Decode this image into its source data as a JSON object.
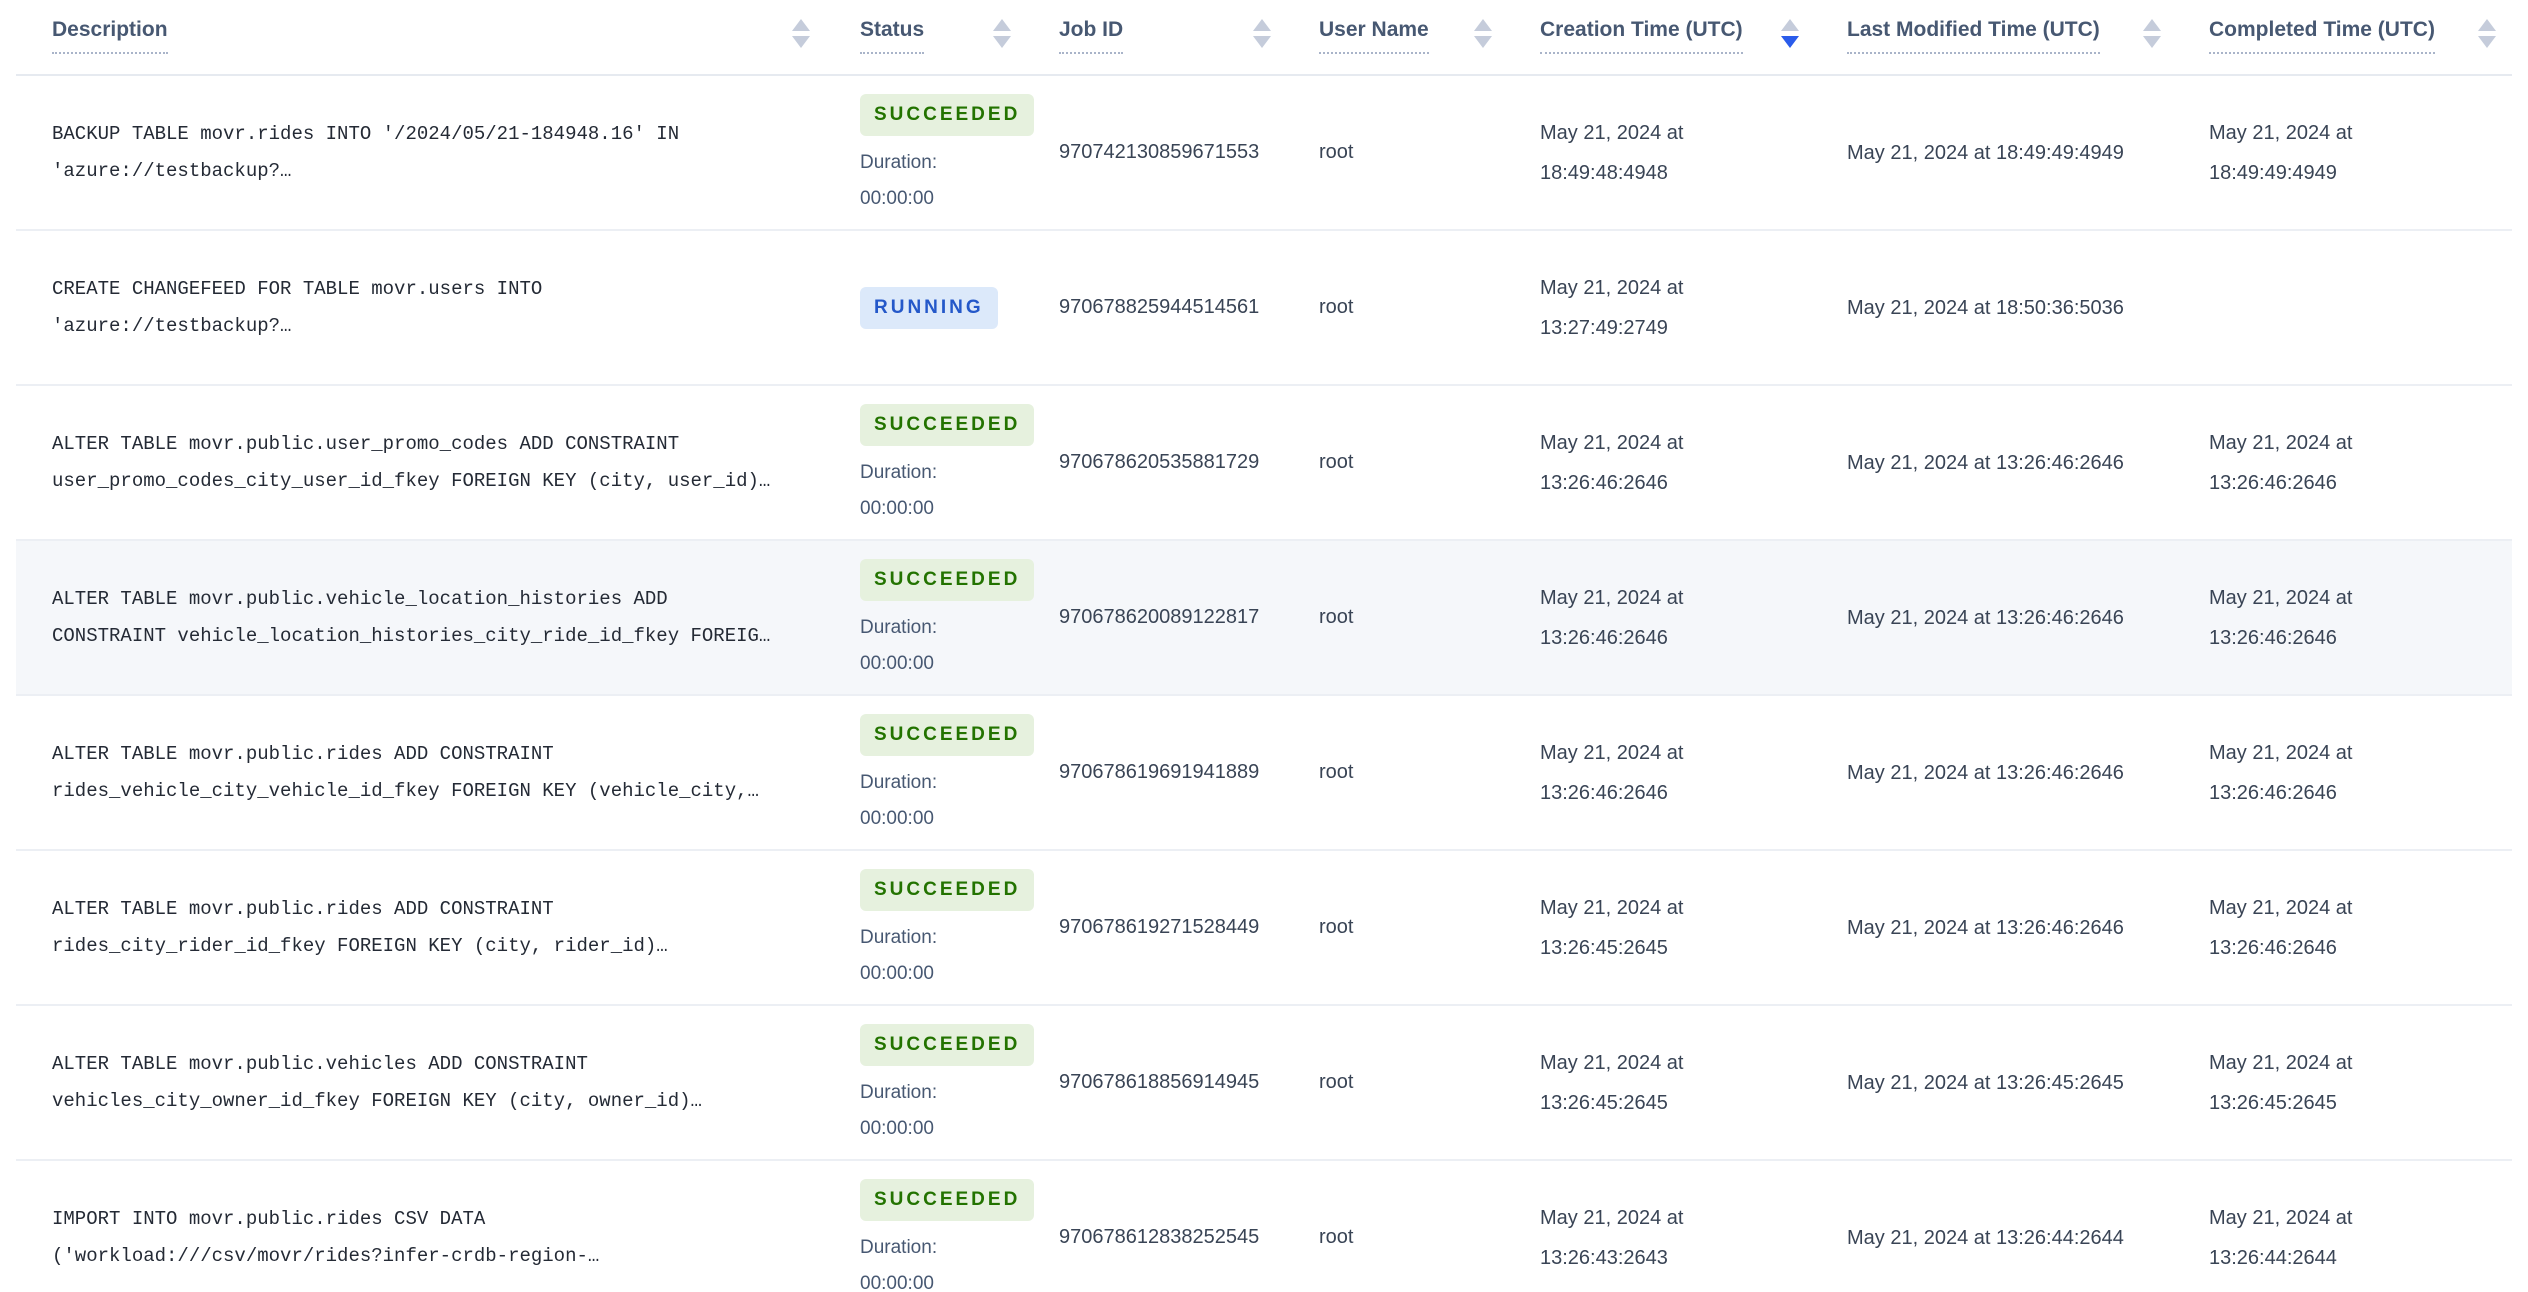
{
  "table": {
    "duration_label": "Duration:",
    "columns": [
      {
        "key": "description",
        "label": "Description",
        "sort": "none"
      },
      {
        "key": "status",
        "label": "Status",
        "sort": "none"
      },
      {
        "key": "job_id",
        "label": "Job ID",
        "sort": "none"
      },
      {
        "key": "user",
        "label": "User Name",
        "sort": "none"
      },
      {
        "key": "created",
        "label": "Creation Time (UTC)",
        "sort": "desc"
      },
      {
        "key": "modified",
        "label": "Last Modified Time (UTC)",
        "sort": "none"
      },
      {
        "key": "completed",
        "label": "Completed Time (UTC)",
        "sort": "none"
      }
    ],
    "status_colors": {
      "SUCCEEDED": {
        "bg": "#E6F1DE",
        "text": "#237300"
      },
      "RUNNING": {
        "bg": "#DCE9FA",
        "text": "#2458C9"
      }
    },
    "sort_active_color": "#2A5CEB",
    "rows": [
      {
        "description_lines": [
          "BACKUP TABLE movr.rides INTO '/2024/05/21-184948.16' IN",
          "'azure://testbackup?…"
        ],
        "status": "SUCCEEDED",
        "duration": "00:00:00",
        "job_id": "970742130859671553",
        "user": "root",
        "created": "May 21, 2024 at 18:49:48:4948",
        "modified": "May 21, 2024 at 18:49:49:4949",
        "completed": "May 21, 2024 at 18:49:49:4949",
        "highlighted": false
      },
      {
        "description_lines": [
          "CREATE CHANGEFEED FOR TABLE movr.users INTO",
          "'azure://testbackup?…"
        ],
        "status": "RUNNING",
        "duration": "",
        "job_id": "970678825944514561",
        "user": "root",
        "created": "May 21, 2024 at 13:27:49:2749",
        "modified": "May 21, 2024 at 18:50:36:5036",
        "completed": "",
        "highlighted": false
      },
      {
        "description_lines": [
          "ALTER TABLE movr.public.user_promo_codes ADD CONSTRAINT",
          "user_promo_codes_city_user_id_fkey FOREIGN KEY (city, user_id)…"
        ],
        "status": "SUCCEEDED",
        "duration": "00:00:00",
        "job_id": "970678620535881729",
        "user": "root",
        "created": "May 21, 2024 at 13:26:46:2646",
        "modified": "May 21, 2024 at 13:26:46:2646",
        "completed": "May 21, 2024 at 13:26:46:2646",
        "highlighted": false
      },
      {
        "description_lines": [
          "ALTER TABLE movr.public.vehicle_location_histories ADD",
          "CONSTRAINT vehicle_location_histories_city_ride_id_fkey FOREIG…"
        ],
        "status": "SUCCEEDED",
        "duration": "00:00:00",
        "job_id": "970678620089122817",
        "user": "root",
        "created": "May 21, 2024 at 13:26:46:2646",
        "modified": "May 21, 2024 at 13:26:46:2646",
        "completed": "May 21, 2024 at 13:26:46:2646",
        "highlighted": true
      },
      {
        "description_lines": [
          "ALTER TABLE movr.public.rides ADD CONSTRAINT",
          "rides_vehicle_city_vehicle_id_fkey FOREIGN KEY (vehicle_city,…"
        ],
        "status": "SUCCEEDED",
        "duration": "00:00:00",
        "job_id": "970678619691941889",
        "user": "root",
        "created": "May 21, 2024 at 13:26:46:2646",
        "modified": "May 21, 2024 at 13:26:46:2646",
        "completed": "May 21, 2024 at 13:26:46:2646",
        "highlighted": false
      },
      {
        "description_lines": [
          "ALTER TABLE movr.public.rides ADD CONSTRAINT",
          "rides_city_rider_id_fkey FOREIGN KEY (city, rider_id)…"
        ],
        "status": "SUCCEEDED",
        "duration": "00:00:00",
        "job_id": "970678619271528449",
        "user": "root",
        "created": "May 21, 2024 at 13:26:45:2645",
        "modified": "May 21, 2024 at 13:26:46:2646",
        "completed": "May 21, 2024 at 13:26:46:2646",
        "highlighted": false
      },
      {
        "description_lines": [
          "ALTER TABLE movr.public.vehicles ADD CONSTRAINT",
          "vehicles_city_owner_id_fkey FOREIGN KEY (city, owner_id)…"
        ],
        "status": "SUCCEEDED",
        "duration": "00:00:00",
        "job_id": "970678618856914945",
        "user": "root",
        "created": "May 21, 2024 at 13:26:45:2645",
        "modified": "May 21, 2024 at 13:26:45:2645",
        "completed": "May 21, 2024 at 13:26:45:2645",
        "highlighted": false
      },
      {
        "description_lines": [
          "IMPORT INTO movr.public.rides CSV DATA",
          "('workload:///csv/movr/rides?infer-crdb-region-…"
        ],
        "status": "SUCCEEDED",
        "duration": "00:00:00",
        "job_id": "970678612838252545",
        "user": "root",
        "created": "May 21, 2024 at 13:26:43:2643",
        "modified": "May 21, 2024 at 13:26:44:2644",
        "completed": "May 21, 2024 at 13:26:44:2644",
        "highlighted": false
      }
    ]
  }
}
